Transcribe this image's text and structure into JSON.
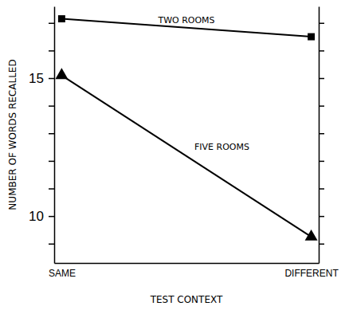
{
  "chart_data": {
    "type": "line",
    "x_label": "TEST CONTEXT",
    "y_label": "NUMBER OF WORDS RECALLED",
    "categories": [
      "SAME",
      "DIFFERENT"
    ],
    "series": [
      {
        "name": "TWO ROOMS",
        "color": "#000000",
        "marker": "square",
        "values": [
          17.15,
          16.5
        ]
      },
      {
        "name": "FIVE ROOMS",
        "color": "#000000",
        "marker": "triangle",
        "values": [
          15.1,
          9.25
        ]
      }
    ],
    "ylim": [
      8.3,
      17.6
    ],
    "yticks": [
      {
        "value": 9,
        "label": null
      },
      10,
      {
        "value": 11,
        "label": null
      },
      {
        "value": 12,
        "label": null
      },
      {
        "value": 13,
        "label": null
      },
      {
        "value": 14,
        "label": null
      },
      15,
      {
        "value": 16,
        "label": null
      },
      {
        "value": 17,
        "label": null
      }
    ],
    "grid": false
  }
}
